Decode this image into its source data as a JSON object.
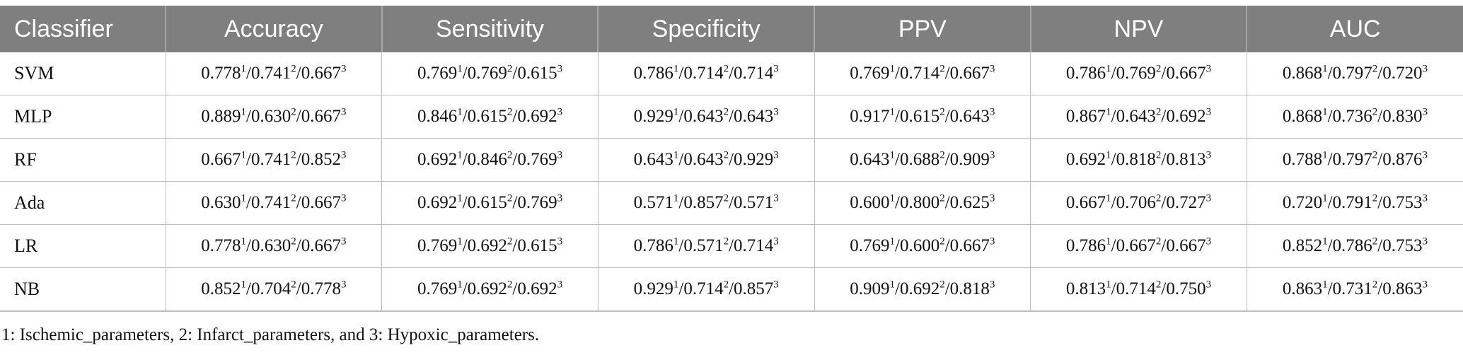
{
  "table": {
    "headers": [
      "Classifier",
      "Accuracy",
      "Sensitivity",
      "Specificity",
      "PPV",
      "NPV",
      "AUC"
    ],
    "rows": [
      {
        "classifier": "SVM",
        "cells": [
          [
            "0.778",
            "1",
            "0.741",
            "2",
            "0.667",
            "3"
          ],
          [
            "0.769",
            "1",
            "0.769",
            "2",
            "0.615",
            "3"
          ],
          [
            "0.786",
            "1",
            "0.714",
            "2",
            "0.714",
            "3"
          ],
          [
            "0.769",
            "1",
            "0.714",
            "2",
            "0.667",
            "3"
          ],
          [
            "0.786",
            "1",
            "0.769",
            "2",
            "0.667",
            "3"
          ],
          [
            "0.868",
            "1",
            "0.797",
            "2",
            "0.720",
            "3"
          ]
        ]
      },
      {
        "classifier": "MLP",
        "cells": [
          [
            "0.889",
            "1",
            "0.630",
            "2",
            "0.667",
            "3"
          ],
          [
            "0.846",
            "1",
            "0.615",
            "2",
            "0.692",
            "3"
          ],
          [
            "0.929",
            "1",
            "0.643",
            "2",
            "0.643",
            "3"
          ],
          [
            "0.917",
            "1",
            "0.615",
            "2",
            "0.643",
            "3"
          ],
          [
            "0.867",
            "1",
            "0.643",
            "2",
            "0.692",
            "3"
          ],
          [
            "0.868",
            "1",
            "0.736",
            "2",
            "0.830",
            "3"
          ]
        ]
      },
      {
        "classifier": "RF",
        "cells": [
          [
            "0.667",
            "1",
            "0.741",
            "2",
            "0.852",
            "3"
          ],
          [
            "0.692",
            "1",
            "0.846",
            "2",
            "0.769",
            "3"
          ],
          [
            "0.643",
            "1",
            "0.643",
            "2",
            "0.929",
            "3"
          ],
          [
            "0.643",
            "1",
            "0.688",
            "2",
            "0.909",
            "3"
          ],
          [
            "0.692",
            "1",
            "0.818",
            "2",
            "0.813",
            "3"
          ],
          [
            "0.788",
            "1",
            "0.797",
            "2",
            "0.876",
            "3"
          ]
        ]
      },
      {
        "classifier": "Ada",
        "cells": [
          [
            "0.630",
            "1",
            "0.741",
            "2",
            "0.667",
            "3"
          ],
          [
            "0.692",
            "1",
            "0.615",
            "2",
            "0.769",
            "3"
          ],
          [
            "0.571",
            "1",
            "0.857",
            "2",
            "0.571",
            "3"
          ],
          [
            "0.600",
            "1",
            "0.800",
            "2",
            "0.625",
            "3"
          ],
          [
            "0.667",
            "1",
            "0.706",
            "2",
            "0.727",
            "3"
          ],
          [
            "0.720",
            "1",
            "0.791",
            "2",
            "0.753",
            "3"
          ]
        ]
      },
      {
        "classifier": "LR",
        "cells": [
          [
            "0.778",
            "1",
            "0.630",
            "2",
            "0.667",
            "3"
          ],
          [
            "0.769",
            "1",
            "0.692",
            "2",
            "0.615",
            "3"
          ],
          [
            "0.786",
            "1",
            "0.571",
            "2",
            "0.714",
            "3"
          ],
          [
            "0.769",
            "1",
            "0.600",
            "2",
            "0.667",
            "3"
          ],
          [
            "0.786",
            "1",
            "0.667",
            "2",
            "0.667",
            "3"
          ],
          [
            "0.852",
            "1",
            "0.786",
            "2",
            "0.753",
            "3"
          ]
        ]
      },
      {
        "classifier": "NB",
        "cells": [
          [
            "0.852",
            "1",
            "0.704",
            "2",
            "0.778",
            "3"
          ],
          [
            "0.769",
            "1",
            "0.692",
            "2",
            "0.692",
            "3"
          ],
          [
            "0.929",
            "1",
            "0.714",
            "2",
            "0.857",
            "3"
          ],
          [
            "0.909",
            "1",
            "0.692",
            "2",
            "0.818",
            "3"
          ],
          [
            "0.813",
            "1",
            "0.714",
            "2",
            "0.750",
            "3"
          ],
          [
            "0.863",
            "1",
            "0.731",
            "2",
            "0.863",
            "3"
          ]
        ]
      }
    ]
  },
  "footnote": "1: Ischemic_parameters, 2: Infarct_parameters, and 3: Hypoxic_parameters."
}
